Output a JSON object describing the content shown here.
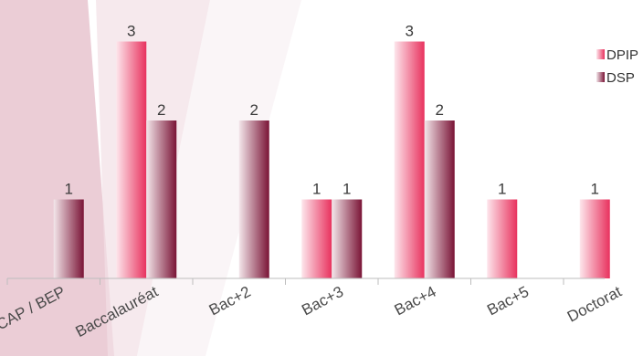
{
  "chart_data": {
    "type": "bar",
    "title": "",
    "xlabel": "",
    "ylabel": "",
    "categories": [
      "CAP / BEP",
      "Baccalauréat",
      "Bac+2",
      "Bac+3",
      "Bac+4",
      "Bac+5",
      "Doctorat"
    ],
    "series": [
      {
        "name": "DPIP",
        "values": [
          null,
          3,
          null,
          1,
          3,
          1,
          1
        ]
      },
      {
        "name": "DSP",
        "values": [
          1,
          2,
          2,
          1,
          2,
          null,
          null
        ]
      }
    ],
    "ylim": [
      0,
      3
    ],
    "legend_position": "top-right",
    "grid": false,
    "data_labels": true,
    "colors": {
      "DPIP_light": "#fde6ec",
      "DPIP_dark": "#e8325e",
      "DSP_light": "#f3e6ea",
      "DSP_dark": "#7a1436",
      "background_band": "#e7c4cf",
      "axis": "#bdbdbd"
    }
  }
}
